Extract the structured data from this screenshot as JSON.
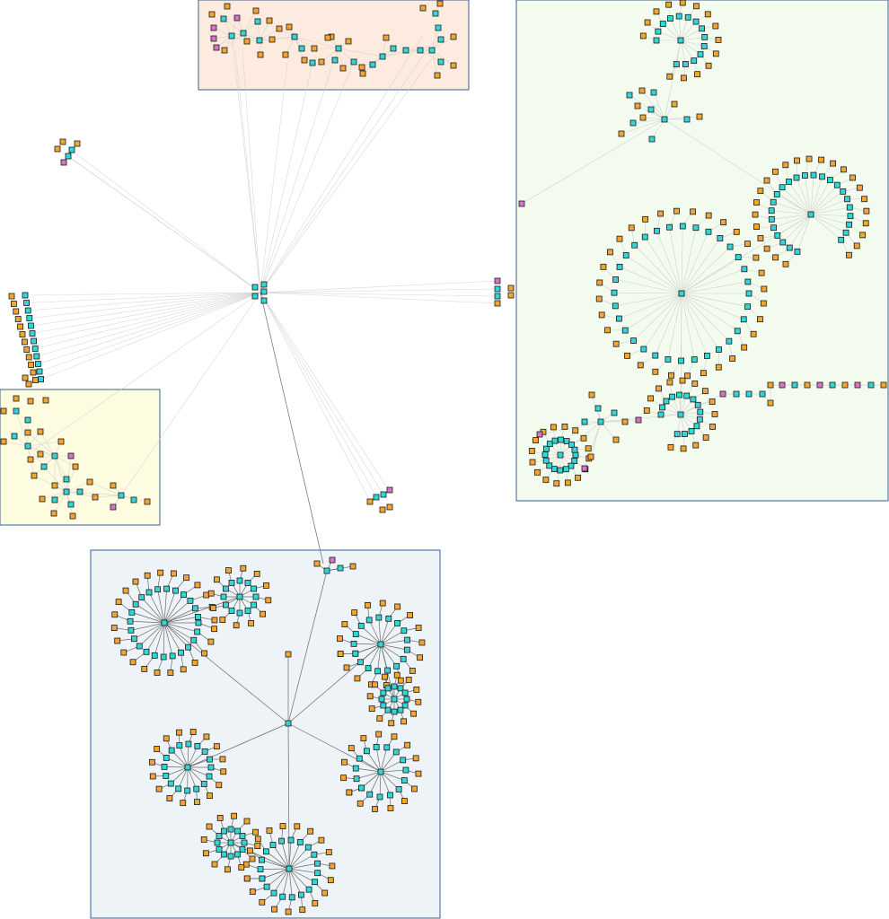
{
  "diagram": {
    "kind": "network-graph",
    "colors": {
      "background": "#ffffff",
      "hub": "#33d6d6",
      "leaf": "#f2a530",
      "special": "#d873c8",
      "edge_light": "#cfcfcf",
      "edge_dark": "#6a6a6a",
      "box_border": "#3b5f8f"
    },
    "groups": [
      {
        "id": "peach-cluster",
        "fill": "#fdebdf"
      },
      {
        "id": "green-cluster",
        "fill": "#f3fbee"
      },
      {
        "id": "yellow-cluster",
        "fill": "#fefce0"
      },
      {
        "id": "blue-cluster",
        "fill": "#eef3f8"
      }
    ],
    "node_types": [
      "hub",
      "leaf",
      "special"
    ]
  }
}
